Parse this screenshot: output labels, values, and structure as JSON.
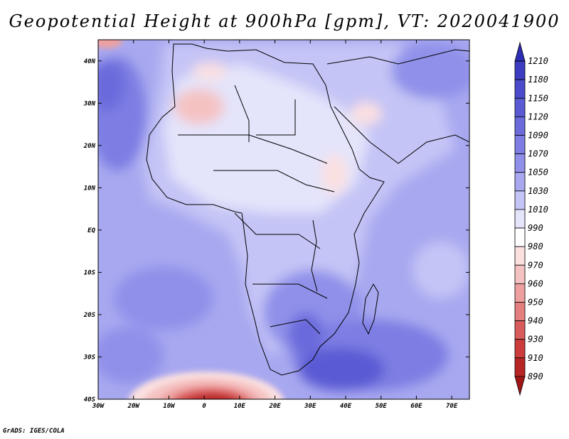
{
  "title": "Geopotential Height at 900hPa [gpm], VT: 2020041900",
  "credit": "GrADS: IGES/COLA",
  "map": {
    "variable": "Geopotential Height",
    "level": "900hPa",
    "units": "gpm",
    "valid_time": "2020041900",
    "lon_range": [
      -30,
      75
    ],
    "lat_range": [
      -40,
      45
    ],
    "x_ticks": [
      "30W",
      "20W",
      "10W",
      "0",
      "10E",
      "20E",
      "30E",
      "40E",
      "50E",
      "60E",
      "70E"
    ],
    "x_tick_values": [
      -30,
      -20,
      -10,
      0,
      10,
      20,
      30,
      40,
      50,
      60,
      70
    ],
    "y_ticks": [
      "40N",
      "30N",
      "20N",
      "10N",
      "EQ",
      "10S",
      "20S",
      "30S",
      "40S"
    ],
    "y_tick_values": [
      40,
      30,
      20,
      10,
      0,
      -10,
      -20,
      -30,
      -40
    ]
  },
  "colorbar": {
    "levels": [
      "1210",
      "1180",
      "1150",
      "1120",
      "1090",
      "1070",
      "1050",
      "1030",
      "1010",
      "990",
      "980",
      "970",
      "960",
      "950",
      "940",
      "930",
      "910",
      "890"
    ],
    "colors": [
      "#2d2db5",
      "#3d3dc2",
      "#4b4bcc",
      "#5a5ad4",
      "#6b6bdc",
      "#7d7de3",
      "#9090ea",
      "#a8a8f0",
      "#c4c4f6",
      "#e4e4fb",
      "#ffffff",
      "#fbe0e0",
      "#f5c2c2",
      "#eea0a0",
      "#e47f7f",
      "#d95c5c",
      "#cc3c3c",
      "#b82525",
      "#a01515"
    ]
  }
}
